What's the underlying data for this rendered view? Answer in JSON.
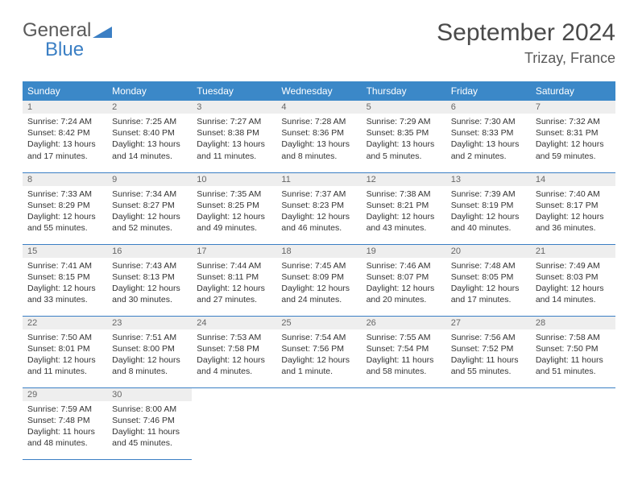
{
  "logo": {
    "word1": "General",
    "word2": "Blue"
  },
  "title": "September 2024",
  "location": "Trizay, France",
  "colors": {
    "header_bg": "#3b88c8",
    "header_text": "#ffffff",
    "daynum_bg": "#eeeeee",
    "border": "#3b7fc4",
    "text": "#333333",
    "title_text": "#4a4a4a",
    "logo_gray": "#5a5a5a",
    "logo_blue": "#3b7fc4"
  },
  "weekdays": [
    "Sunday",
    "Monday",
    "Tuesday",
    "Wednesday",
    "Thursday",
    "Friday",
    "Saturday"
  ],
  "days": [
    {
      "n": 1,
      "sr": "7:24 AM",
      "ss": "8:42 PM",
      "dl": "13 hours and 17 minutes."
    },
    {
      "n": 2,
      "sr": "7:25 AM",
      "ss": "8:40 PM",
      "dl": "13 hours and 14 minutes."
    },
    {
      "n": 3,
      "sr": "7:27 AM",
      "ss": "8:38 PM",
      "dl": "13 hours and 11 minutes."
    },
    {
      "n": 4,
      "sr": "7:28 AM",
      "ss": "8:36 PM",
      "dl": "13 hours and 8 minutes."
    },
    {
      "n": 5,
      "sr": "7:29 AM",
      "ss": "8:35 PM",
      "dl": "13 hours and 5 minutes."
    },
    {
      "n": 6,
      "sr": "7:30 AM",
      "ss": "8:33 PM",
      "dl": "13 hours and 2 minutes."
    },
    {
      "n": 7,
      "sr": "7:32 AM",
      "ss": "8:31 PM",
      "dl": "12 hours and 59 minutes."
    },
    {
      "n": 8,
      "sr": "7:33 AM",
      "ss": "8:29 PM",
      "dl": "12 hours and 55 minutes."
    },
    {
      "n": 9,
      "sr": "7:34 AM",
      "ss": "8:27 PM",
      "dl": "12 hours and 52 minutes."
    },
    {
      "n": 10,
      "sr": "7:35 AM",
      "ss": "8:25 PM",
      "dl": "12 hours and 49 minutes."
    },
    {
      "n": 11,
      "sr": "7:37 AM",
      "ss": "8:23 PM",
      "dl": "12 hours and 46 minutes."
    },
    {
      "n": 12,
      "sr": "7:38 AM",
      "ss": "8:21 PM",
      "dl": "12 hours and 43 minutes."
    },
    {
      "n": 13,
      "sr": "7:39 AM",
      "ss": "8:19 PM",
      "dl": "12 hours and 40 minutes."
    },
    {
      "n": 14,
      "sr": "7:40 AM",
      "ss": "8:17 PM",
      "dl": "12 hours and 36 minutes."
    },
    {
      "n": 15,
      "sr": "7:41 AM",
      "ss": "8:15 PM",
      "dl": "12 hours and 33 minutes."
    },
    {
      "n": 16,
      "sr": "7:43 AM",
      "ss": "8:13 PM",
      "dl": "12 hours and 30 minutes."
    },
    {
      "n": 17,
      "sr": "7:44 AM",
      "ss": "8:11 PM",
      "dl": "12 hours and 27 minutes."
    },
    {
      "n": 18,
      "sr": "7:45 AM",
      "ss": "8:09 PM",
      "dl": "12 hours and 24 minutes."
    },
    {
      "n": 19,
      "sr": "7:46 AM",
      "ss": "8:07 PM",
      "dl": "12 hours and 20 minutes."
    },
    {
      "n": 20,
      "sr": "7:48 AM",
      "ss": "8:05 PM",
      "dl": "12 hours and 17 minutes."
    },
    {
      "n": 21,
      "sr": "7:49 AM",
      "ss": "8:03 PM",
      "dl": "12 hours and 14 minutes."
    },
    {
      "n": 22,
      "sr": "7:50 AM",
      "ss": "8:01 PM",
      "dl": "12 hours and 11 minutes."
    },
    {
      "n": 23,
      "sr": "7:51 AM",
      "ss": "8:00 PM",
      "dl": "12 hours and 8 minutes."
    },
    {
      "n": 24,
      "sr": "7:53 AM",
      "ss": "7:58 PM",
      "dl": "12 hours and 4 minutes."
    },
    {
      "n": 25,
      "sr": "7:54 AM",
      "ss": "7:56 PM",
      "dl": "12 hours and 1 minute."
    },
    {
      "n": 26,
      "sr": "7:55 AM",
      "ss": "7:54 PM",
      "dl": "11 hours and 58 minutes."
    },
    {
      "n": 27,
      "sr": "7:56 AM",
      "ss": "7:52 PM",
      "dl": "11 hours and 55 minutes."
    },
    {
      "n": 28,
      "sr": "7:58 AM",
      "ss": "7:50 PM",
      "dl": "11 hours and 51 minutes."
    },
    {
      "n": 29,
      "sr": "7:59 AM",
      "ss": "7:48 PM",
      "dl": "11 hours and 48 minutes."
    },
    {
      "n": 30,
      "sr": "8:00 AM",
      "ss": "7:46 PM",
      "dl": "11 hours and 45 minutes."
    }
  ],
  "labels": {
    "sunrise": "Sunrise:",
    "sunset": "Sunset:",
    "daylight": "Daylight:"
  },
  "layout": {
    "first_day_column": 0,
    "num_weeks": 5
  }
}
